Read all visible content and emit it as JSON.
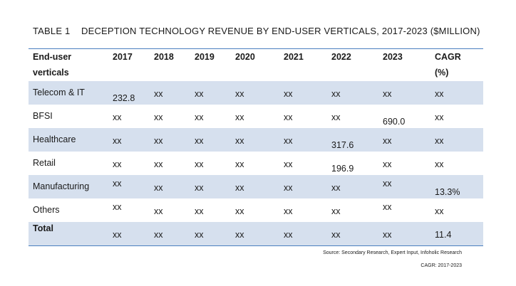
{
  "title": {
    "number": "TABLE 1",
    "text": "DECEPTION TECHNOLOGY REVENUE BY END-USER VERTICALS, 2017-2023 ($MILLION)"
  },
  "table": {
    "headers": [
      "End-user verticals",
      "2017",
      "2018",
      "2019",
      "2020",
      "2021",
      "2022",
      "2023",
      "CAGR (%)"
    ],
    "header_lines": [
      [
        "End-user",
        "verticals"
      ],
      [
        "2017"
      ],
      [
        "2018"
      ],
      [
        "2019"
      ],
      [
        "2020"
      ],
      [
        "2021"
      ],
      [
        "2022"
      ],
      [
        "2023"
      ],
      [
        "CAGR",
        "(%)"
      ]
    ],
    "rows": [
      {
        "label": "Telecom & IT",
        "values": [
          "232.8",
          "xx",
          "xx",
          "xx",
          "xx",
          "xx",
          "xx",
          "xx"
        ]
      },
      {
        "label": "BFSI",
        "values": [
          "xx",
          "xx",
          "xx",
          "xx",
          "xx",
          "xx",
          "690.0",
          "xx"
        ]
      },
      {
        "label": "Healthcare",
        "values": [
          "xx",
          "xx",
          "xx",
          "xx",
          "xx",
          "317.6",
          "xx",
          "xx"
        ]
      },
      {
        "label": "Retail",
        "values": [
          "xx",
          "xx",
          "xx",
          "xx",
          "xx",
          "196.9",
          "xx",
          "xx"
        ]
      },
      {
        "label": "Manufacturing",
        "values": [
          "xx",
          "xx",
          "xx",
          "xx",
          "xx",
          "xx",
          "xx",
          "13.3%"
        ]
      },
      {
        "label": "Others",
        "values": [
          "xx",
          "xx",
          "xx",
          "xx",
          "xx",
          "xx",
          "xx",
          "xx"
        ]
      },
      {
        "label": "Total",
        "values": [
          "xx",
          "xx",
          "xx",
          "xx",
          "xx",
          "xx",
          "xx",
          "11.4"
        ]
      }
    ]
  },
  "source": "Source: Secondary Research, Expert Input, Infoholic Research",
  "cagr_note": "CAGR: 2017-2023",
  "colors": {
    "rule": "#4a7ebf",
    "band": "#d6e0ee"
  }
}
